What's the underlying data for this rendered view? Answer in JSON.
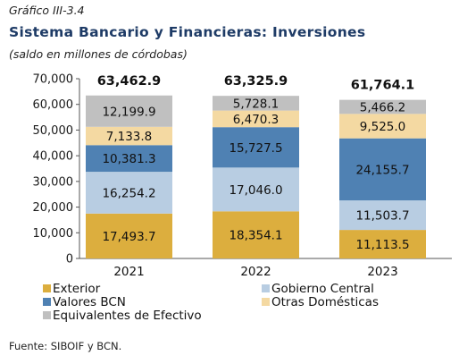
{
  "header": {
    "label": "Gráfico III-3.4",
    "title": "Sistema Bancario y Financieras: Inversiones",
    "subtitle": "(saldo en millones de córdobas)"
  },
  "source": "Fuente: SIBOIF y BCN.",
  "chart_data": {
    "type": "stacked-bar",
    "categories": [
      "2021",
      "2022",
      "2023"
    ],
    "series": [
      {
        "name": "Exterior",
        "color": "#dcae3e",
        "values": [
          17493.7,
          18354.1,
          11113.5
        ],
        "labels": [
          "17,493.7",
          "18,354.1",
          "11,113.5"
        ]
      },
      {
        "name": "Gobierno Central",
        "color": "#b8cde2",
        "values": [
          16254.2,
          17046.0,
          11503.7
        ],
        "labels": [
          "16,254.2",
          "17,046.0",
          "11,503.7"
        ]
      },
      {
        "name": "Valores BCN",
        "color": "#4f81b3",
        "values": [
          10381.3,
          15727.5,
          24155.7
        ],
        "labels": [
          "10,381.3",
          "15,727.5",
          "24,155.7"
        ]
      },
      {
        "name": "Otras Domésticas",
        "color": "#f4d9a2",
        "values": [
          7133.8,
          6470.3,
          9525.0
        ],
        "labels": [
          "7,133.8",
          "6,470.3",
          "9,525.0"
        ]
      },
      {
        "name": "Equivalentes de Efectivo",
        "color": "#c0c0c0",
        "values": [
          12199.9,
          5728.1,
          5466.2
        ],
        "labels": [
          "12,199.9",
          "5,728.1",
          "5,466.2"
        ]
      }
    ],
    "totals": [
      "63,462.9",
      "63,325.9",
      "61,764.1"
    ],
    "ylim": [
      0,
      70000
    ],
    "yticks": [
      "0",
      "10,000",
      "20,000",
      "30,000",
      "40,000",
      "50,000",
      "60,000",
      "70,000"
    ],
    "legend_position": "bottom"
  }
}
